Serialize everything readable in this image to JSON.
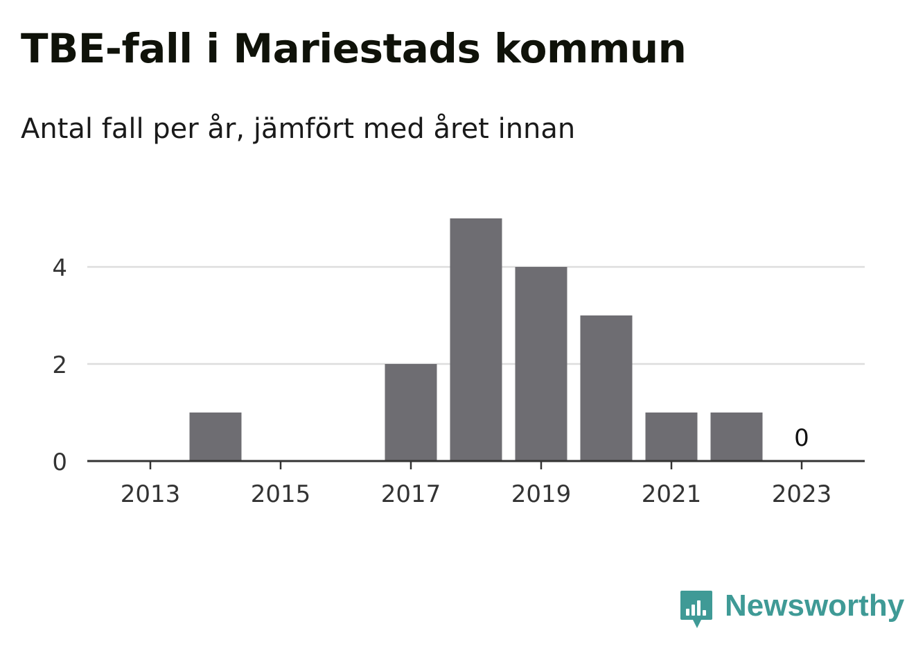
{
  "title": "TBE-fall i Mariestads kommun",
  "subtitle": "Antal fall per år, jämfört med året innan",
  "brand": {
    "name": "Newsworthy",
    "color": "#3f9a96",
    "icon": "newsworthy-logo-icon"
  },
  "colors": {
    "bar": "#6e6d72",
    "grid": "#dddddd",
    "axis": "#333333",
    "text": "#333333"
  },
  "chart_data": {
    "type": "bar",
    "categories": [
      "2013",
      "2014",
      "2015",
      "2016",
      "2017",
      "2018",
      "2019",
      "2020",
      "2021",
      "2022",
      "2023"
    ],
    "values": [
      0,
      1,
      0,
      0,
      2,
      5,
      4,
      3,
      1,
      1,
      0
    ],
    "x_tick_labels": [
      "2013",
      "2015",
      "2017",
      "2019",
      "2021",
      "2023"
    ],
    "y_ticks": [
      0,
      2,
      4
    ],
    "ylim": [
      0,
      5
    ],
    "data_labels": [
      {
        "category": "2023",
        "text": "0"
      }
    ],
    "grid": true,
    "xlabel": "",
    "ylabel": ""
  }
}
